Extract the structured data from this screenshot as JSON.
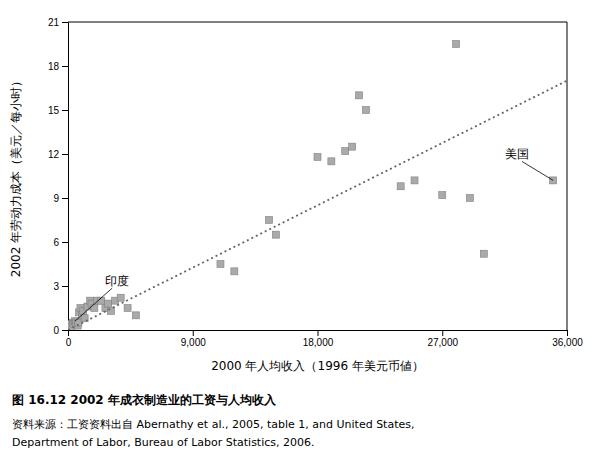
{
  "chart_data": {
    "type": "scatter",
    "title": "图 16.12   2002 年成衣制造业的工资与人均收入",
    "source": [
      "资料来源：工资资料出自 Abernathy et al., 2005, table 1, and United States,",
      "Department of Labor, Bureau of Labor Statistics, 2006."
    ],
    "x_label": "2000 年人均收入（1996 年美元币値）",
    "y_label": "2002 年劳动力成本（美元／每小时）",
    "grid": false,
    "series": [
      {
        "type": "scatter",
        "marker": "square",
        "color": "#aaaaaa",
        "x": [
          150,
          200,
          250,
          350,
          400,
          500,
          550,
          600,
          700,
          750,
          800,
          900,
          1000,
          1100,
          1200,
          1400,
          1600,
          1700,
          1900,
          2100,
          2400,
          2700,
          2900,
          3100,
          3400,
          3800,
          4300,
          4900,
          11000,
          12000,
          14500,
          15000,
          18000,
          19000,
          20000,
          20500,
          21000,
          21500,
          24000,
          25000,
          27000,
          28000,
          29000,
          30000,
          35000
        ],
        "values": [
          0.3,
          0.4,
          0.2,
          0.5,
          0.4,
          0.6,
          0.5,
          0.4,
          0.3,
          0.5,
          1.2,
          1.5,
          1.0,
          1.3,
          0.8,
          1.6,
          2.0,
          1.8,
          1.5,
          2.0,
          2.0,
          1.5,
          1.8,
          1.3,
          2.0,
          2.2,
          1.5,
          1.0,
          4.5,
          4.0,
          7.5,
          6.5,
          11.8,
          11.5,
          12.2,
          12.5,
          16.0,
          15.0,
          9.8,
          10.2,
          9.2,
          19.5,
          9.0,
          5.2,
          10.2
        ]
      },
      {
        "type": "line",
        "line_style": "dotted",
        "color": "#666666",
        "x": [
          0,
          36000
        ],
        "values": [
          0,
          17.0
        ]
      }
    ],
    "annotations": [
      {
        "text": "印度",
        "x": 500,
        "y": 0.6
      },
      {
        "text": "美国",
        "x": 35000,
        "y": 10.2
      }
    ],
    "xlim": [
      0,
      36000
    ],
    "ylim": [
      0,
      21
    ],
    "xticks": [
      0,
      {
        "value": 9000,
        "label": "9,000"
      },
      {
        "value": 18000,
        "label": "18,000"
      },
      {
        "value": 27000,
        "label": "27,000"
      },
      {
        "value": 36000,
        "label": "36,000"
      }
    ],
    "yticks": [
      0,
      3,
      6,
      9,
      12,
      15,
      18,
      21
    ]
  }
}
